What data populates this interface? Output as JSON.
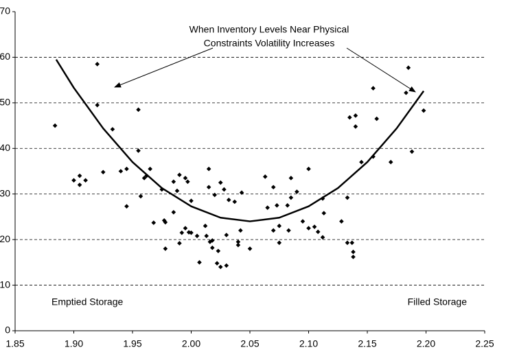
{
  "chart_data": {
    "type": "scatter",
    "annotations": [
      "When Inventory Levels Near Physical",
      "Constraints Volatility Increases"
    ],
    "left_label": "Emptied Storage",
    "right_label": "Filled Storage",
    "xlim": [
      1.85,
      2.25
    ],
    "xticks": [
      1.85,
      {
        "value": 1.9,
        "label": "1.90"
      },
      1.95,
      {
        "value": 2.0,
        "label": "2.00"
      },
      2.05,
      {
        "value": 2.1,
        "label": "2.10"
      },
      2.15,
      {
        "value": 2.2,
        "label": "2.20"
      },
      2.25
    ],
    "ylim": [
      0,
      70
    ],
    "yticks": [
      0,
      10,
      20,
      30,
      40,
      50,
      60,
      70
    ],
    "grid": true,
    "series": [
      {
        "color": "#000000",
        "x": [
          1.884,
          1.9,
          1.905,
          1.905,
          1.91,
          1.92,
          1.92,
          1.925,
          1.933,
          1.94,
          1.945,
          1.945,
          1.955,
          1.955,
          1.957,
          1.96,
          1.965,
          1.962,
          1.968,
          1.975,
          1.977,
          1.978,
          1.978,
          1.985,
          1.985,
          1.988,
          1.99,
          1.99,
          1.992,
          1.995,
          1.995,
          1.997,
          1.998,
          2.0,
          2.0,
          2.005,
          2.007,
          2.012,
          2.013,
          2.015,
          2.015,
          2.016,
          2.018,
          2.018,
          2.02,
          2.022,
          2.023,
          2.025,
          2.025,
          2.028,
          2.03,
          2.03,
          2.032,
          2.037,
          2.04,
          2.04,
          2.042,
          2.043,
          2.05,
          2.063,
          2.065,
          2.07,
          2.07,
          2.073,
          2.075,
          2.075,
          2.082,
          2.083,
          2.085,
          2.085,
          2.09,
          2.095,
          2.1,
          2.1,
          2.105,
          2.108,
          2.112,
          2.112,
          2.113,
          2.128,
          2.133,
          2.133,
          2.135,
          2.137,
          2.138,
          2.138,
          2.14,
          2.14,
          2.145,
          2.155,
          2.155,
          2.158,
          2.17,
          2.183,
          2.185,
          2.188,
          2.198
        ],
        "values": [
          45,
          33,
          34,
          32,
          33,
          58.5,
          49.5,
          34.8,
          44.2,
          35,
          27.3,
          35.5,
          48.5,
          39.5,
          29.5,
          33.5,
          35.5,
          34,
          23.7,
          31,
          24.2,
          23.8,
          18,
          26,
          32.7,
          30.7,
          34.2,
          19.2,
          21.5,
          22.5,
          33.5,
          32.7,
          21.6,
          28.5,
          21.5,
          20.8,
          15,
          23,
          20.8,
          35.5,
          31.5,
          19.5,
          19.8,
          18.2,
          29.8,
          14.8,
          17.5,
          32.5,
          14,
          31,
          14.3,
          21,
          28.7,
          28.3,
          19.5,
          18.8,
          22,
          30.3,
          18,
          33.8,
          27,
          31.5,
          22,
          27.5,
          23,
          19.3,
          27.5,
          22,
          33.5,
          29.2,
          30.5,
          24,
          35.5,
          22.5,
          22.8,
          21.7,
          20.5,
          29,
          25.8,
          24,
          19.3,
          29.2,
          46.8,
          19.3,
          17.3,
          16.2,
          47.2,
          44.8,
          37,
          53.2,
          38.2,
          46.5,
          37,
          52.2,
          57.7,
          39.3,
          48.3
        ]
      },
      {
        "type": "line",
        "color": "#000000",
        "x": [
          1.885,
          1.9,
          1.925,
          1.95,
          1.975,
          2.0,
          2.025,
          2.05,
          2.075,
          2.1,
          2.125,
          2.15,
          2.175,
          2.198
        ],
        "values": [
          59.5,
          53.3,
          44.4,
          37.0,
          31.3,
          27.3,
          24.8,
          24,
          24.8,
          27.3,
          31.3,
          37.0,
          44.4,
          52.6
        ]
      }
    ]
  }
}
